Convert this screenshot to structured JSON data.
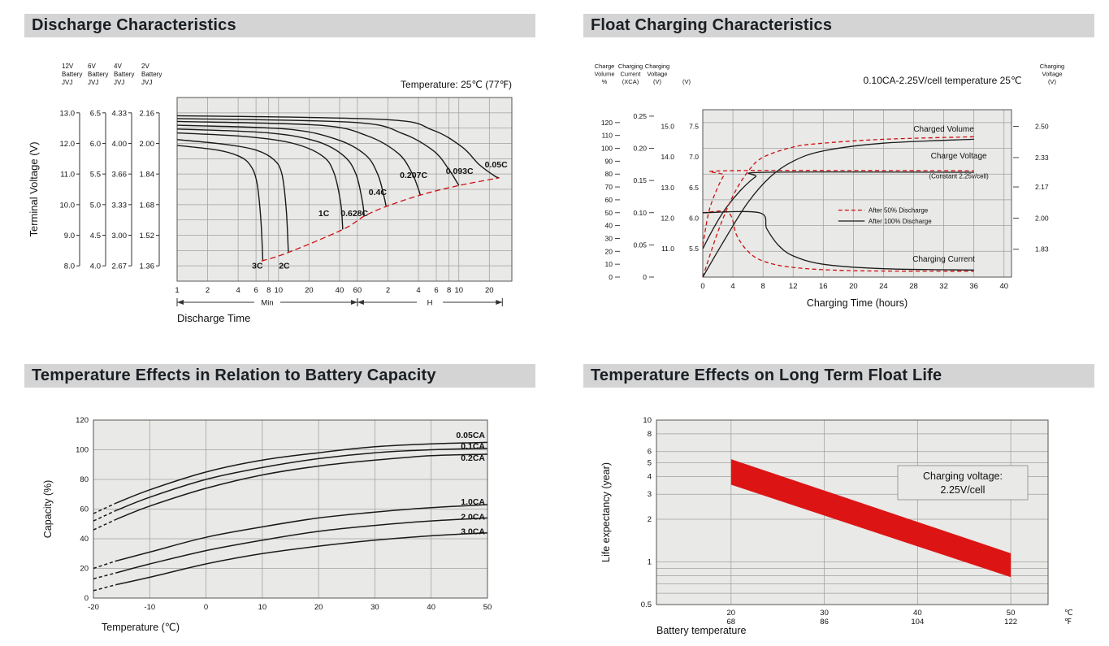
{
  "theme": {
    "page_bg": "#ffffff",
    "title_bg": "#d4d4d4",
    "title_color": "#1a1f24",
    "plot_bg": "#e9e9e7",
    "grid": "#a0a0a0",
    "axis": "#555555",
    "curve": "#1a1a1a",
    "red": "#cc1111",
    "band_red": "#dd1414"
  },
  "panels": [
    {
      "title": "Discharge Characteristics"
    },
    {
      "title": "Float Charging Characteristics"
    },
    {
      "title": "Temperature Effects in Relation to Battery Capacity"
    },
    {
      "title": "Temperature Effects on Long Term Float Life"
    }
  ],
  "chart_data": [
    {
      "type": "line",
      "title": "Discharge Characteristics",
      "annotation": "Temperature: 25℃ (77℉)",
      "ylabel": "Terminal Voltage (V)",
      "xlabel": "Discharge Time",
      "ylim": [
        1.28,
        2.24
      ],
      "x_sections": [
        {
          "label": "Min",
          "unit_minutes": 1,
          "ticks": [
            1,
            2,
            4,
            6,
            8,
            10,
            20,
            40,
            60
          ]
        },
        {
          "label": "H",
          "unit_minutes": 60,
          "ticks": [
            2,
            4,
            6,
            8,
            10,
            20
          ]
        }
      ],
      "voltage_scales": [
        {
          "header": [
            "12V",
            "Battery",
            "JVJ"
          ],
          "values": [
            "13.0",
            "12.0",
            "11.0",
            "10.0",
            "9.0",
            "8.0"
          ]
        },
        {
          "header": [
            "6V",
            "Battery",
            "JVJ"
          ],
          "values": [
            "6.5",
            "6.0",
            "5.5",
            "5.0",
            "4.5",
            "4.0"
          ]
        },
        {
          "header": [
            "4V",
            "Battery",
            "JVJ"
          ],
          "values": [
            "4.33",
            "4.00",
            "3.66",
            "3.33",
            "3.00",
            "2.67"
          ]
        },
        {
          "header": [
            "2V",
            "Battery",
            "JVJ"
          ],
          "values": [
            "2.16",
            "2.00",
            "1.84",
            "1.68",
            "1.52",
            "1.36"
          ]
        }
      ],
      "cell_ticks": [
        2.16,
        2.0,
        1.84,
        1.68,
        1.52,
        1.36
      ],
      "curves": [
        {
          "label": "3C",
          "label_at": [
            6.2,
            1.345
          ],
          "points": [
            [
              1,
              1.99
            ],
            [
              2.5,
              1.965
            ],
            [
              4,
              1.935
            ],
            [
              5.2,
              1.89
            ],
            [
              6.1,
              1.8
            ],
            [
              6.7,
              1.6
            ],
            [
              7,
              1.385
            ]
          ]
        },
        {
          "label": "2C",
          "label_at": [
            11.4,
            1.345
          ],
          "points": [
            [
              1,
              2.02
            ],
            [
              3,
              1.995
            ],
            [
              6,
              1.965
            ],
            [
              9,
              1.915
            ],
            [
              10.8,
              1.84
            ],
            [
              11.9,
              1.66
            ],
            [
              12.5,
              1.43
            ]
          ]
        },
        {
          "label": "1C",
          "label_at": [
            28,
            1.62
          ],
          "points": [
            [
              1,
              2.055
            ],
            [
              5,
              2.035
            ],
            [
              14,
              2.0
            ],
            [
              27,
              1.935
            ],
            [
              35,
              1.85
            ],
            [
              41,
              1.69
            ],
            [
              43,
              1.55
            ]
          ]
        },
        {
          "label": "0.628C",
          "label_at": [
            56,
            1.62
          ],
          "points": [
            [
              1,
              2.075
            ],
            [
              8,
              2.055
            ],
            [
              24,
              2.01
            ],
            [
              44,
              1.935
            ],
            [
              58,
              1.84
            ],
            [
              67,
              1.7
            ],
            [
              70,
              1.62
            ]
          ]
        },
        {
          "label": "0.4C",
          "label_at": [
            95,
            1.73
          ],
          "points": [
            [
              1,
              2.095
            ],
            [
              12,
              2.075
            ],
            [
              38,
              2.02
            ],
            [
              72,
              1.94
            ],
            [
              95,
              1.84
            ],
            [
              110,
              1.72
            ],
            [
              115,
              1.67
            ]
          ]
        },
        {
          "label": "0.207C",
          "label_at": [
            215,
            1.82
          ],
          "points": [
            [
              1,
              2.115
            ],
            [
              25,
              2.095
            ],
            [
              75,
              2.04
            ],
            [
              150,
              1.95
            ],
            [
              205,
              1.85
            ],
            [
              240,
              1.76
            ],
            [
              250,
              1.73
            ]
          ]
        },
        {
          "label": "0.093C",
          "label_at": [
            610,
            1.84
          ],
          "points": [
            [
              1,
              2.13
            ],
            [
              55,
              2.11
            ],
            [
              170,
              2.05
            ],
            [
              340,
              1.96
            ],
            [
              470,
              1.87
            ],
            [
              570,
              1.8
            ],
            [
              600,
              1.78
            ]
          ]
        },
        {
          "label": "0.05C",
          "label_at": [
            1400,
            1.875
          ],
          "points": [
            [
              1,
              2.145
            ],
            [
              110,
              2.125
            ],
            [
              330,
              2.07
            ],
            [
              650,
              1.98
            ],
            [
              950,
              1.89
            ],
            [
              1350,
              1.83
            ],
            [
              1500,
              1.82
            ]
          ]
        }
      ],
      "cutoff_curve": [
        [
          6.8,
          1.385
        ],
        [
          12.5,
          1.43
        ],
        [
          43,
          1.55
        ],
        [
          70,
          1.62
        ],
        [
          115,
          1.67
        ],
        [
          250,
          1.73
        ],
        [
          600,
          1.78
        ],
        [
          1500,
          1.82
        ]
      ]
    },
    {
      "type": "line",
      "title": "Float Charging Characteristics",
      "annotation": "0.10CA-2.25V/cell  temperature 25℃",
      "xlabel": "Charging Time (hours)",
      "xlim": [
        0,
        41
      ],
      "x_ticks": [
        0,
        4,
        8,
        12,
        16,
        20,
        24,
        28,
        32,
        36,
        40
      ],
      "left_axes": [
        {
          "map": "vol",
          "header": [
            "Charge",
            "Volume",
            "%"
          ],
          "ticks": [
            "0",
            "10",
            "20",
            "30",
            "40",
            "50",
            "60",
            "70",
            "80",
            "90",
            "100",
            "110",
            "120"
          ]
        },
        {
          "map": "cur",
          "header": [
            "Charging",
            "Current",
            "(XCA)"
          ],
          "ticks": [
            "0",
            "0.05",
            "0.10",
            "0.15",
            "0.20",
            "0.25"
          ]
        },
        {
          "map": "v12",
          "header": [
            "Charging",
            "Voltage",
            "(V)"
          ],
          "ticks": [
            "11.0",
            "12.0",
            "13.0",
            "14.0",
            "15.0"
          ]
        },
        {
          "map": "v6",
          "header": [
            "",
            "",
            "(V)"
          ],
          "ticks": [
            "5.5",
            "6.0",
            "6.5",
            "7.0",
            "7.5"
          ]
        }
      ],
      "right_axis": {
        "map": "vcell",
        "header": [
          "Charging",
          "Voltage",
          "(V)"
        ],
        "ticks": [
          "1.83",
          "2.00",
          "2.17",
          "2.33",
          "2.50"
        ]
      },
      "series": [
        {
          "name": "charge-voltage-after-50",
          "axis": "v12",
          "style": "dashed-red",
          "points": [
            [
              0,
              11.1
            ],
            [
              0.8,
              12.2
            ],
            [
              1.8,
              12.9
            ],
            [
              2.8,
              13.4
            ],
            [
              3.4,
              13.55
            ],
            [
              36,
              13.55
            ]
          ]
        },
        {
          "name": "charge-voltage-after-100",
          "axis": "v12",
          "style": "solid",
          "points": [
            [
              0,
              11.0
            ],
            [
              1.5,
              11.7
            ],
            [
              3,
              12.3
            ],
            [
              5,
              12.9
            ],
            [
              7,
              13.35
            ],
            [
              8.5,
              13.5
            ],
            [
              36,
              13.5
            ]
          ]
        },
        {
          "name": "charged-volume-after-50",
          "axis": "vol",
          "style": "dashed-red",
          "points": [
            [
              0,
              0
            ],
            [
              2,
              35
            ],
            [
              4,
              63
            ],
            [
              6,
              82
            ],
            [
              8,
              93
            ],
            [
              12,
              101
            ],
            [
              16,
              104
            ],
            [
              24,
              107
            ],
            [
              36,
              109
            ]
          ]
        },
        {
          "name": "charged-volume-after-100",
          "axis": "vol",
          "style": "solid",
          "points": [
            [
              0,
              0
            ],
            [
              3,
              30
            ],
            [
              6,
              58
            ],
            [
              9,
              78
            ],
            [
              12,
              90
            ],
            [
              16,
              98
            ],
            [
              24,
              104
            ],
            [
              36,
              107
            ]
          ]
        },
        {
          "name": "charging-current-after-50",
          "axis": "cur",
          "style": "dashed-red",
          "points": [
            [
              0,
              0.1
            ],
            [
              3.4,
              0.1
            ],
            [
              4.5,
              0.065
            ],
            [
              6,
              0.04
            ],
            [
              8,
              0.025
            ],
            [
              12,
              0.015
            ],
            [
              20,
              0.01
            ],
            [
              36,
              0.009
            ]
          ]
        },
        {
          "name": "charging-current-after-100",
          "axis": "cur",
          "style": "solid",
          "points": [
            [
              0,
              0.1
            ],
            [
              7.5,
              0.1
            ],
            [
              8.5,
              0.075
            ],
            [
              10,
              0.05
            ],
            [
              12,
              0.033
            ],
            [
              16,
              0.02
            ],
            [
              24,
              0.013
            ],
            [
              36,
              0.011
            ]
          ]
        }
      ],
      "labels": {
        "charged_volume": "Charged Volume",
        "charge_voltage": "Charge Voltage",
        "constant": "(Constant 2.25v/cell)",
        "charging_current": "Charging Current"
      },
      "legend": [
        {
          "style": "dashed-red",
          "label": "After  50% Discharge"
        },
        {
          "style": "solid",
          "label": "After 100% Discharge"
        }
      ]
    },
    {
      "type": "line",
      "title": "Temperature Effects in Relation to Battery Capacity",
      "ylabel": "Capacity (%)",
      "xlabel": "Temperature (℃)",
      "xlim": [
        -20,
        50
      ],
      "ylim": [
        0,
        120
      ],
      "x_ticks": [
        -20,
        -10,
        0,
        10,
        20,
        30,
        40,
        50
      ],
      "y_ticks": [
        0,
        20,
        40,
        60,
        80,
        100,
        120
      ],
      "dash_until": -16,
      "curves": [
        {
          "label": "0.05CA",
          "label_cap": 108,
          "points": [
            [
              -20,
              57
            ],
            [
              -16,
              64
            ],
            [
              -10,
              73
            ],
            [
              0,
              85
            ],
            [
              10,
              93
            ],
            [
              20,
              98
            ],
            [
              30,
              102
            ],
            [
              40,
              104
            ],
            [
              50,
              105
            ]
          ]
        },
        {
          "label": "0.1CA",
          "label_cap": 100.5,
          "points": [
            [
              -20,
              52
            ],
            [
              -16,
              59
            ],
            [
              -10,
              68
            ],
            [
              0,
              80
            ],
            [
              10,
              88
            ],
            [
              20,
              94
            ],
            [
              30,
              98
            ],
            [
              40,
              100
            ],
            [
              50,
              101
            ]
          ]
        },
        {
          "label": "0.2CA",
          "label_cap": 92.5,
          "points": [
            [
              -20,
              46
            ],
            [
              -16,
              53
            ],
            [
              -10,
              62
            ],
            [
              0,
              74
            ],
            [
              10,
              83
            ],
            [
              20,
              89
            ],
            [
              30,
              93
            ],
            [
              40,
              96
            ],
            [
              50,
              97
            ]
          ]
        },
        {
          "label": "1.0CA",
          "label_cap": 63,
          "points": [
            [
              -20,
              20
            ],
            [
              -16,
              25
            ],
            [
              -10,
              31
            ],
            [
              0,
              41
            ],
            [
              10,
              48
            ],
            [
              20,
              54
            ],
            [
              30,
              58
            ],
            [
              40,
              61
            ],
            [
              50,
              63
            ]
          ]
        },
        {
          "label": "2.0CA",
          "label_cap": 53,
          "points": [
            [
              -20,
              13
            ],
            [
              -16,
              17
            ],
            [
              -10,
              23
            ],
            [
              0,
              32
            ],
            [
              10,
              39
            ],
            [
              20,
              45
            ],
            [
              30,
              49
            ],
            [
              40,
              52
            ],
            [
              50,
              54
            ]
          ]
        },
        {
          "label": "3.0CA",
          "label_cap": 43,
          "points": [
            [
              -20,
              5
            ],
            [
              -16,
              9
            ],
            [
              -10,
              14
            ],
            [
              0,
              23
            ],
            [
              10,
              30
            ],
            [
              20,
              35
            ],
            [
              30,
              39
            ],
            [
              40,
              42
            ],
            [
              50,
              44
            ]
          ]
        }
      ]
    },
    {
      "type": "band",
      "title": "Temperature Effects on Long Term Float Life",
      "ylabel": "Life expectancy (year)",
      "xlabel": "Battery temperature",
      "annotation": [
        "Charging voltage:",
        "2.25V/cell"
      ],
      "xlim": [
        12,
        54
      ],
      "ylim_log": [
        0.5,
        10
      ],
      "y_ticks": [
        "10",
        "8",
        "6",
        "5",
        "4",
        "3",
        "2",
        "1",
        "0.5"
      ],
      "y_minor": [
        0.9,
        0.8,
        0.7,
        0.6
      ],
      "x_ticks_c": [
        "20",
        "30",
        "40",
        "50"
      ],
      "x_ticks_f": [
        "68",
        "86",
        "104",
        "122"
      ],
      "unit_c": "℃",
      "unit_f": "℉",
      "band": {
        "x": [
          20,
          50
        ],
        "upper": [
          5.3,
          1.15
        ],
        "lower": [
          3.5,
          0.78
        ]
      }
    }
  ]
}
